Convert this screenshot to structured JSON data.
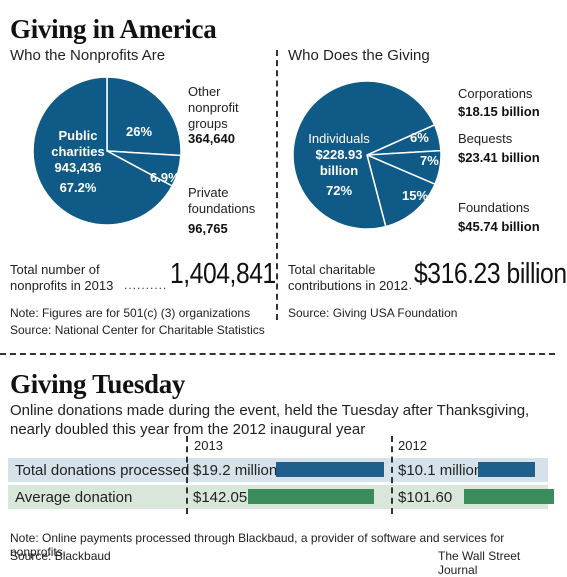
{
  "header": {
    "title": "Giving in America",
    "left_subtitle": "Who the Nonprofits Are",
    "right_subtitle": "Who Does the Giving"
  },
  "left_chart": {
    "slices": [
      {
        "label": "Public charities",
        "value": 943436,
        "pct": "67.2%",
        "value_text": "943,436"
      },
      {
        "label": "Other nonprofit groups",
        "value": 364640,
        "pct": "26%",
        "value_text": "364,640"
      },
      {
        "label": "Private foundations",
        "value": 96765,
        "pct": "6.9%",
        "value_text": "96,765"
      }
    ],
    "total_label_line1": "Total number of",
    "total_label_line2": "nonprofits in 2013",
    "total_value": "1,404,841",
    "note": "Note: Figures are for 501(c) (3) organizations",
    "source": "Source: National Center for Charitable Statistics"
  },
  "right_chart": {
    "slices": [
      {
        "label": "Individuals",
        "value_text": "$228.93 billion",
        "pct": "72%",
        "value": 228.93
      },
      {
        "label": "Corporations",
        "value_text": "$18.15 billion",
        "pct": "6%",
        "value": 18.15
      },
      {
        "label": "Bequests",
        "value_text": "$23.41 billion",
        "pct": "7%",
        "value": 23.41
      },
      {
        "label": "Foundations",
        "value_text": "$45.74 billion",
        "pct": "15%",
        "value": 45.74
      }
    ],
    "total_label_line1": "Total charitable",
    "total_label_line2": "contributions in 2012",
    "total_value": "$316.23 billion",
    "source": "Source: Giving USA Foundation"
  },
  "tuesday": {
    "title": "Giving Tuesday",
    "description": "Online donations made during the event, held the Tuesday after Thanksgiving, nearly doubled this year from the 2012 inaugural year",
    "year1": "2013",
    "year2": "2012",
    "rows": [
      {
        "label": "Total donations processed",
        "v2013": "$19.2 million",
        "v2012": "$10.1 million",
        "n2013": 19.2,
        "n2012": 10.1
      },
      {
        "label": "Average donation",
        "v2013": "$142.05",
        "v2012": "$101.60",
        "n2013": 142.05,
        "n2012": 101.6
      }
    ],
    "note": "Note: Online payments processed through Blackbaud, a provider of software and services for nonprofits.",
    "source": "Source: Blackbaud",
    "credit": "The Wall Street Journal"
  },
  "colors": {
    "pie": "#0f5a86",
    "blue_bar": "#1e5f8c",
    "green_bar": "#3a8c5a",
    "row_blue": "#d6e2e9",
    "row_green": "#d8e7d9"
  },
  "chart_data": [
    {
      "type": "pie",
      "title": "Who the Nonprofits Are",
      "categories": [
        "Public charities",
        "Other nonprofit groups",
        "Private foundations"
      ],
      "values": [
        943436,
        364640,
        96765
      ],
      "percent": [
        67.2,
        26,
        6.9
      ]
    },
    {
      "type": "pie",
      "title": "Who Does the Giving",
      "categories": [
        "Individuals",
        "Corporations",
        "Bequests",
        "Foundations"
      ],
      "values": [
        228.93,
        18.15,
        23.41,
        45.74
      ],
      "percent": [
        72,
        6,
        7,
        15
      ]
    },
    {
      "type": "bar",
      "title": "Giving Tuesday",
      "categories": [
        "Total donations processed",
        "Average donation"
      ],
      "series": [
        {
          "name": "2013",
          "values": [
            19.2,
            142.05
          ]
        },
        {
          "name": "2012",
          "values": [
            10.1,
            101.6
          ]
        }
      ]
    }
  ]
}
